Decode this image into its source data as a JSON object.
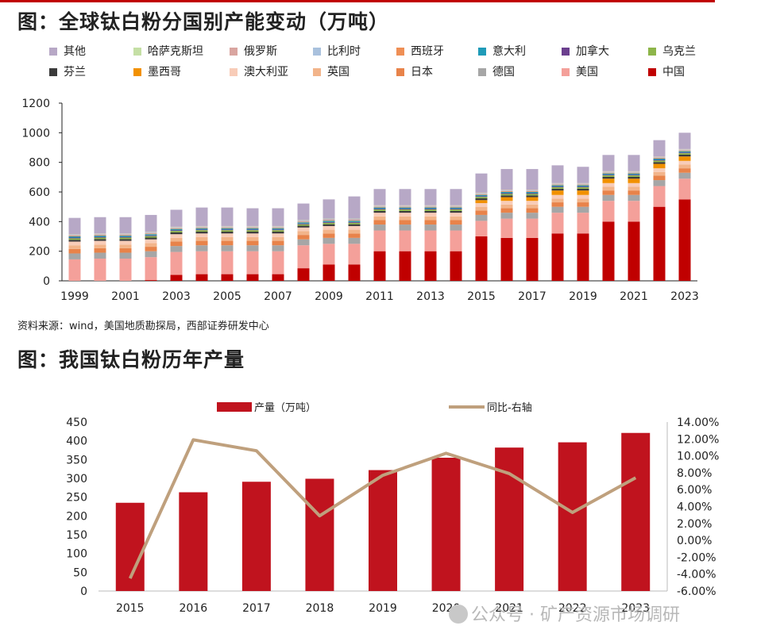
{
  "chart_data": [
    {
      "type": "bar",
      "stacked": true,
      "title": "图：全球钛白粉分国别产能变动（万吨）",
      "xlabel": "",
      "ylabel": "",
      "ylim": [
        0,
        1200
      ],
      "yticks": [
        0,
        200,
        400,
        600,
        800,
        1000,
        1200
      ],
      "years": [
        1999,
        2000,
        2001,
        2002,
        2003,
        2004,
        2005,
        2006,
        2007,
        2008,
        2009,
        2010,
        2011,
        2012,
        2013,
        2014,
        2015,
        2016,
        2017,
        2018,
        2019,
        2020,
        2021,
        2022,
        2023
      ],
      "xtick_labels": [
        "1999",
        "2001",
        "2003",
        "2005",
        "2007",
        "2009",
        "2011",
        "2013",
        "2015",
        "2017",
        "2019",
        "2021",
        "2023"
      ],
      "legend_order": [
        "其他",
        "哈萨克斯坦",
        "俄罗斯",
        "比利时",
        "西班牙",
        "意大利",
        "加拿大",
        "乌克兰",
        "芬兰",
        "墨西哥",
        "澳大利亚",
        "英国",
        "日本",
        "德国",
        "美国",
        "中国"
      ],
      "series": [
        {
          "name": "中国",
          "color": "#c00000",
          "values": [
            0,
            0,
            0,
            5,
            40,
            45,
            45,
            45,
            45,
            85,
            110,
            110,
            200,
            200,
            200,
            200,
            300,
            290,
            290,
            320,
            320,
            400,
            400,
            500,
            550
          ]
        },
        {
          "name": "美国",
          "color": "#f4a09a",
          "values": [
            145,
            150,
            150,
            155,
            155,
            155,
            155,
            155,
            155,
            155,
            140,
            140,
            140,
            140,
            140,
            140,
            105,
            130,
            130,
            140,
            140,
            140,
            140,
            140,
            140
          ]
        },
        {
          "name": "德国",
          "color": "#a6a6a6",
          "values": [
            40,
            40,
            40,
            40,
            40,
            40,
            40,
            40,
            40,
            40,
            40,
            40,
            40,
            40,
            40,
            40,
            40,
            40,
            40,
            40,
            40,
            40,
            40,
            40,
            40
          ]
        },
        {
          "name": "日本",
          "color": "#e8834a",
          "values": [
            30,
            30,
            30,
            30,
            30,
            30,
            30,
            30,
            30,
            30,
            30,
            30,
            30,
            30,
            30,
            30,
            30,
            30,
            30,
            30,
            30,
            30,
            30,
            30,
            30
          ]
        },
        {
          "name": "英国",
          "color": "#f2b48a",
          "values": [
            25,
            25,
            25,
            25,
            25,
            25,
            25,
            25,
            25,
            25,
            25,
            25,
            25,
            25,
            25,
            25,
            25,
            25,
            25,
            25,
            25,
            25,
            25,
            25,
            25
          ]
        },
        {
          "name": "澳大利亚",
          "color": "#f8ccb8",
          "values": [
            25,
            25,
            25,
            25,
            25,
            25,
            25,
            25,
            25,
            25,
            25,
            25,
            25,
            25,
            25,
            25,
            25,
            25,
            25,
            25,
            25,
            25,
            25,
            25,
            25
          ]
        },
        {
          "name": "墨西哥",
          "color": "#f29100",
          "values": [
            0,
            0,
            0,
            0,
            0,
            0,
            0,
            0,
            0,
            0,
            0,
            0,
            0,
            0,
            0,
            0,
            20,
            25,
            25,
            30,
            30,
            30,
            30,
            30,
            30
          ]
        },
        {
          "name": "芬兰",
          "color": "#3b3b3b",
          "values": [
            12,
            12,
            12,
            12,
            12,
            12,
            12,
            12,
            12,
            12,
            12,
            12,
            12,
            12,
            12,
            12,
            12,
            12,
            12,
            12,
            12,
            12,
            12,
            12,
            12
          ]
        },
        {
          "name": "乌克兰",
          "color": "#8db54a",
          "values": [
            10,
            10,
            10,
            10,
            10,
            10,
            10,
            10,
            10,
            10,
            10,
            10,
            10,
            10,
            10,
            10,
            10,
            10,
            10,
            10,
            10,
            10,
            10,
            10,
            10
          ]
        },
        {
          "name": "加拿大",
          "color": "#6b3f8e",
          "values": [
            5,
            5,
            5,
            5,
            5,
            5,
            5,
            5,
            5,
            5,
            5,
            5,
            5,
            5,
            5,
            5,
            5,
            5,
            5,
            5,
            5,
            5,
            5,
            5,
            5
          ]
        },
        {
          "name": "意大利",
          "color": "#1f9bb8",
          "values": [
            8,
            8,
            8,
            8,
            8,
            8,
            8,
            8,
            8,
            8,
            8,
            8,
            8,
            8,
            8,
            8,
            8,
            8,
            8,
            8,
            8,
            8,
            8,
            8,
            8
          ]
        },
        {
          "name": "西班牙",
          "color": "#ef8f55",
          "values": [
            5,
            5,
            5,
            5,
            5,
            5,
            5,
            5,
            5,
            5,
            5,
            5,
            5,
            5,
            5,
            5,
            5,
            5,
            5,
            5,
            5,
            5,
            5,
            5,
            5
          ]
        },
        {
          "name": "比利时",
          "color": "#a9c1dd",
          "values": [
            5,
            5,
            5,
            5,
            5,
            5,
            5,
            5,
            5,
            5,
            5,
            5,
            5,
            5,
            5,
            5,
            5,
            5,
            5,
            5,
            5,
            5,
            5,
            5,
            5
          ]
        },
        {
          "name": "俄罗斯",
          "color": "#d9a5a0",
          "values": [
            3,
            3,
            3,
            3,
            3,
            3,
            3,
            3,
            3,
            3,
            3,
            3,
            3,
            3,
            3,
            3,
            3,
            3,
            3,
            3,
            3,
            3,
            3,
            3,
            3
          ]
        },
        {
          "name": "哈萨克斯坦",
          "color": "#c5dfa5",
          "values": [
            2,
            2,
            2,
            2,
            2,
            2,
            2,
            2,
            2,
            2,
            2,
            2,
            2,
            2,
            2,
            2,
            2,
            2,
            2,
            2,
            2,
            2,
            2,
            2,
            2
          ]
        },
        {
          "name": "其他",
          "color": "#b7a8c6",
          "values": [
            110,
            110,
            110,
            115,
            115,
            125,
            125,
            120,
            120,
            112,
            130,
            150,
            110,
            110,
            110,
            110,
            130,
            140,
            140,
            120,
            110,
            110,
            110,
            110,
            110
          ]
        }
      ]
    },
    {
      "type": "bar+line",
      "title": "图：我国钛白粉历年产量",
      "categories": [
        "2015",
        "2016",
        "2017",
        "2018",
        "2019",
        "2020",
        "2021",
        "2022",
        "2023"
      ],
      "series": [
        {
          "name": "产量（万吨）",
          "type": "bar",
          "axis": "left",
          "color": "#c0131e",
          "values": [
            235,
            263,
            291,
            299,
            322,
            355,
            382,
            396,
            421
          ]
        },
        {
          "name": "同比-右轴",
          "type": "line",
          "axis": "right",
          "color": "#bfa07d",
          "values": [
            -4.5,
            11.9,
            10.6,
            2.9,
            7.7,
            10.3,
            7.9,
            3.3,
            7.4
          ]
        }
      ],
      "ylim_left": [
        0,
        450
      ],
      "yticks_left": [
        "0",
        "50",
        "100",
        "150",
        "200",
        "250",
        "300",
        "350",
        "400",
        "450"
      ],
      "ylim_right": [
        -6,
        14
      ],
      "yticks_right": [
        "-6.00%",
        "-4.00%",
        "-2.00%",
        "0.00%",
        "2.00%",
        "4.00%",
        "6.00%",
        "8.00%",
        "10.00%",
        "12.00%",
        "14.00%"
      ]
    }
  ],
  "page": {
    "source": "资料来源：wind，美国地质勘探局，西部证券研发中心",
    "watermark": "公众号 · 矿产资源市场调研"
  }
}
